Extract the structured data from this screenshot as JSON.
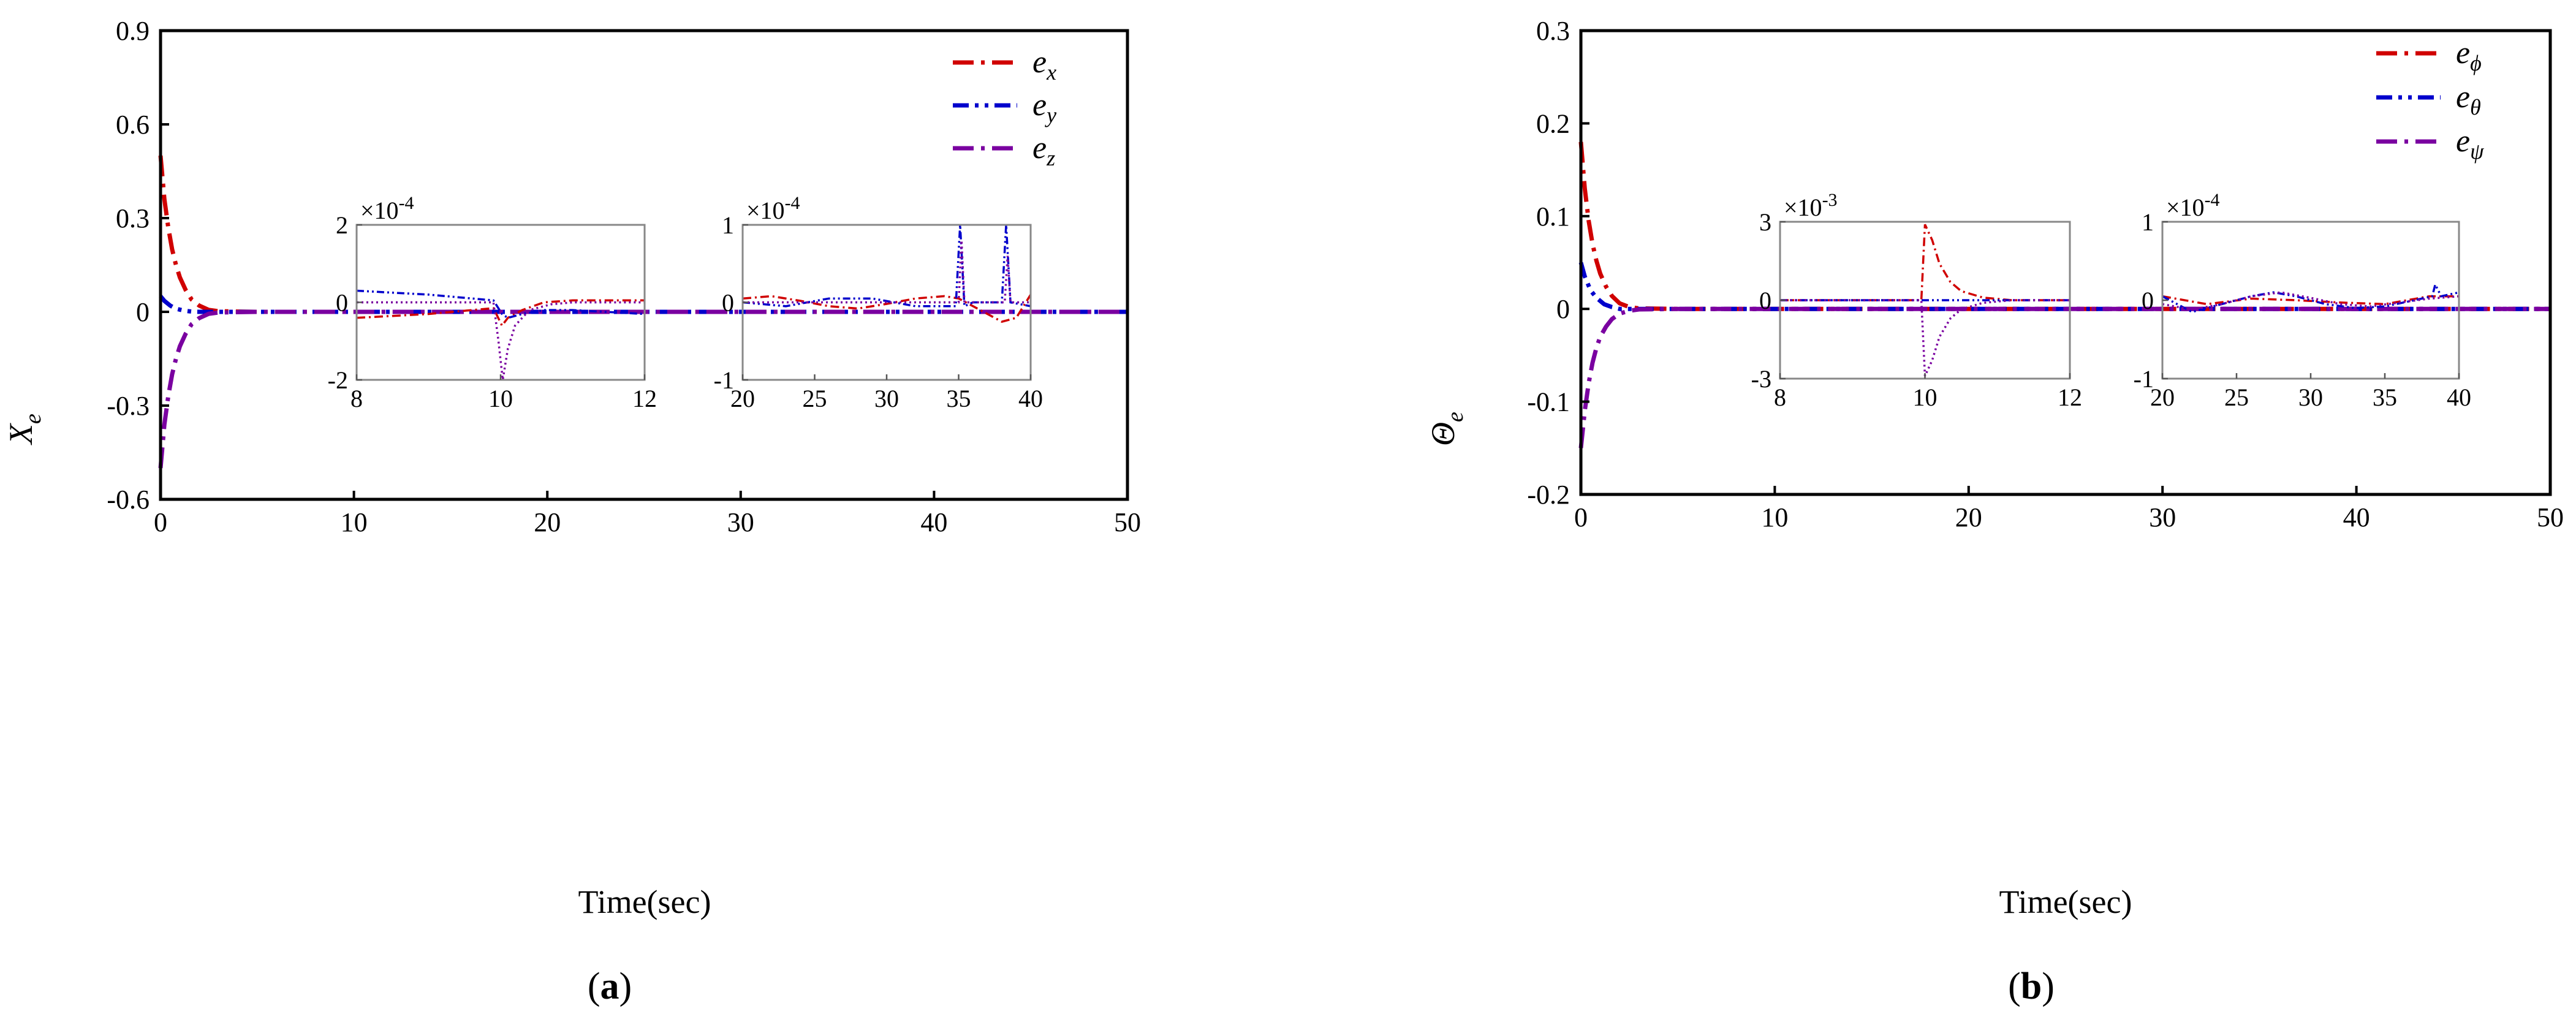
{
  "chart_data": [
    {
      "type": "line",
      "subplot_label": "a",
      "xlabel": "Time(sec)",
      "ylabel_main": "X",
      "ylabel_sub": "e",
      "xlim": [
        0,
        50
      ],
      "ylim": [
        -0.6,
        0.9
      ],
      "xticks": [
        "0",
        "10",
        "20",
        "30",
        "40",
        "50"
      ],
      "yticks": [
        "-0.6",
        "-0.3",
        "0",
        "0.3",
        "0.6",
        "0.9"
      ],
      "legend_position": "top-right",
      "series": [
        {
          "name": "e_x",
          "legend_main": "e",
          "legend_sub": "x",
          "color": "#d00000",
          "style": "dash-dot",
          "x": [
            0,
            0.2,
            0.4,
            0.6,
            0.8,
            1.0,
            1.3,
            1.6,
            2.0,
            2.5,
            3,
            5,
            10,
            20,
            30,
            40,
            50
          ],
          "y": [
            0.5,
            0.36,
            0.27,
            0.2,
            0.15,
            0.11,
            0.07,
            0.04,
            0.02,
            0.006,
            0.002,
            0,
            0,
            0,
            0,
            0,
            0
          ]
        },
        {
          "name": "e_y",
          "legend_main": "e",
          "legend_sub": "y",
          "color": "#0000cc",
          "style": "dash-dot-dot",
          "x": [
            0,
            0.2,
            0.5,
            0.8,
            1.2,
            1.6,
            2.0,
            3,
            5,
            10,
            20,
            30,
            40,
            50
          ],
          "y": [
            0.05,
            0.035,
            0.02,
            0.01,
            0.004,
            0.001,
            0,
            0,
            0,
            0,
            0,
            0,
            0,
            0
          ]
        },
        {
          "name": "e_z",
          "legend_main": "e",
          "legend_sub": "z",
          "color": "#7a00a0",
          "style": "dash-dot",
          "x": [
            0,
            0.2,
            0.4,
            0.6,
            0.8,
            1.0,
            1.3,
            1.6,
            2.0,
            2.5,
            3,
            5,
            10,
            20,
            30,
            40,
            50
          ],
          "y": [
            -0.5,
            -0.36,
            -0.27,
            -0.2,
            -0.15,
            -0.11,
            -0.07,
            -0.04,
            -0.02,
            -0.006,
            -0.002,
            0,
            0,
            0,
            0,
            0,
            0
          ]
        }
      ],
      "insets": [
        {
          "xlim": [
            8,
            12
          ],
          "ylim": [
            -2,
            2
          ],
          "multiplier": "×10",
          "exponent": "-4",
          "xticks": [
            "8",
            "10",
            "12"
          ],
          "yticks": [
            "-2",
            "0",
            "2"
          ],
          "series": [
            {
              "name": "e_x",
              "color": "#d00000",
              "style": "dash-dot",
              "x": [
                8,
                9,
                9.9,
                10.02,
                10.1,
                10.3,
                10.6,
                11,
                12
              ],
              "y": [
                -0.4,
                -0.3,
                -0.15,
                -0.6,
                -0.4,
                -0.2,
                0,
                0.05,
                0.05
              ]
            },
            {
              "name": "e_y",
              "color": "#0000cc",
              "style": "dash-dot-dot",
              "x": [
                8,
                9,
                9.9,
                10.02,
                10.1,
                10.3,
                10.6,
                11,
                12
              ],
              "y": [
                0.3,
                0.2,
                0.05,
                -0.3,
                -0.4,
                -0.3,
                -0.2,
                -0.2,
                -0.3
              ]
            },
            {
              "name": "e_z",
              "color": "#7a00a0",
              "style": "dotted",
              "x": [
                8,
                9.9,
                9.97,
                10.03,
                10.1,
                10.2,
                10.4,
                10.7,
                11,
                12
              ],
              "y": [
                0,
                0,
                -1.0,
                -2.0,
                -1.2,
                -0.6,
                -0.2,
                -0.05,
                0,
                0
              ]
            }
          ]
        },
        {
          "xlim": [
            20,
            40
          ],
          "ylim": [
            -1,
            1
          ],
          "multiplier": "×10",
          "exponent": "-4",
          "xticks": [
            "20",
            "25",
            "30",
            "35",
            "40"
          ],
          "yticks": [
            "-1",
            "0",
            "1"
          ],
          "series": [
            {
              "name": "e_x",
              "color": "#d00000",
              "style": "dash-dot",
              "x": [
                20,
                22,
                24,
                26,
                28,
                30,
                32,
                34,
                35,
                36,
                37,
                38,
                39,
                40
              ],
              "y": [
                0.05,
                0.08,
                0.02,
                -0.05,
                -0.08,
                -0.02,
                0.05,
                0.08,
                0.05,
                -0.05,
                -0.15,
                -0.25,
                -0.2,
                0.1
              ]
            },
            {
              "name": "e_y",
              "color": "#0000cc",
              "style": "dash-dot-dot",
              "x": [
                20,
                23,
                26,
                29,
                32,
                34.8,
                35.1,
                35.4,
                36,
                38.0,
                38.3,
                38.6,
                40
              ],
              "y": [
                0,
                -0.05,
                0.05,
                0.05,
                -0.05,
                -0.05,
                1.0,
                -0.05,
                0,
                0,
                1.0,
                0,
                -0.05
              ]
            },
            {
              "name": "e_z",
              "color": "#7a00a0",
              "style": "dotted",
              "x": [
                20,
                24,
                28,
                32,
                35,
                35.2,
                35.4,
                38.2,
                38.4,
                38.6,
                40
              ],
              "y": [
                0,
                0,
                0,
                0,
                0,
                0.8,
                0,
                0,
                0.6,
                0,
                0
              ]
            }
          ]
        }
      ]
    },
    {
      "type": "line",
      "subplot_label": "b",
      "xlabel": "Time(sec)",
      "ylabel_main": "Θ",
      "ylabel_sub": "e",
      "xlim": [
        0,
        50
      ],
      "ylim": [
        -0.2,
        0.3
      ],
      "xticks": [
        "0",
        "10",
        "20",
        "30",
        "40",
        "50"
      ],
      "yticks": [
        "-0.2",
        "-0.1",
        "0",
        "0.1",
        "0.2",
        "0.3"
      ],
      "legend_position": "top-right",
      "series": [
        {
          "name": "e_phi",
          "legend_main": "e",
          "legend_sub": "ϕ",
          "color": "#d00000",
          "style": "dash-dot",
          "x": [
            0,
            0.2,
            0.4,
            0.6,
            0.8,
            1.0,
            1.3,
            1.6,
            2.0,
            2.5,
            3,
            5,
            10,
            20,
            30,
            40,
            50
          ],
          "y": [
            0.18,
            0.13,
            0.095,
            0.07,
            0.052,
            0.038,
            0.024,
            0.014,
            0.006,
            0.002,
            0.0005,
            0,
            0,
            0,
            0,
            0,
            0
          ]
        },
        {
          "name": "e_theta",
          "legend_main": "e",
          "legend_sub": "θ",
          "color": "#0000cc",
          "style": "dash-dot-dot",
          "x": [
            0,
            0.2,
            0.5,
            0.8,
            1.2,
            1.6,
            2.0,
            3,
            5,
            10,
            20,
            30,
            40,
            50
          ],
          "y": [
            0.05,
            0.035,
            0.02,
            0.012,
            0.005,
            0.002,
            0,
            0,
            0,
            0,
            0,
            0,
            0,
            0
          ]
        },
        {
          "name": "e_psi",
          "legend_main": "e",
          "legend_sub": "ψ",
          "color": "#7a00a0",
          "style": "dash-dot",
          "x": [
            0,
            0.2,
            0.4,
            0.6,
            0.8,
            1.0,
            1.3,
            1.6,
            2.0,
            2.5,
            3,
            5,
            10,
            20,
            30,
            40,
            50
          ],
          "y": [
            -0.15,
            -0.11,
            -0.08,
            -0.058,
            -0.042,
            -0.03,
            -0.019,
            -0.011,
            -0.005,
            -0.002,
            -0.0005,
            0,
            0,
            0,
            0,
            0,
            0
          ]
        }
      ],
      "insets": [
        {
          "xlim": [
            8,
            12
          ],
          "ylim": [
            -3,
            3
          ],
          "multiplier": "×10",
          "exponent": "-3",
          "xticks": [
            "8",
            "10",
            "12"
          ],
          "yticks": [
            "-3",
            "0",
            "3"
          ],
          "series": [
            {
              "name": "e_phi",
              "color": "#d00000",
              "style": "dash-dot",
              "x": [
                8,
                9.95,
                10.0,
                10.1,
                10.2,
                10.35,
                10.5,
                10.8,
                11.2,
                12
              ],
              "y": [
                0,
                0,
                2.9,
                2.3,
                1.4,
                0.7,
                0.35,
                0.1,
                0,
                0
              ]
            },
            {
              "name": "e_theta",
              "color": "#0000cc",
              "style": "dash-dot-dot",
              "x": [
                8,
                10,
                12
              ],
              "y": [
                0,
                0,
                0
              ]
            },
            {
              "name": "e_psi",
              "color": "#7a00a0",
              "style": "dotted",
              "x": [
                8,
                9.95,
                10.0,
                10.1,
                10.2,
                10.35,
                10.5,
                10.8,
                11.2,
                12
              ],
              "y": [
                0,
                0,
                -2.9,
                -2.3,
                -1.4,
                -0.7,
                -0.35,
                -0.1,
                0,
                0
              ]
            }
          ]
        },
        {
          "xlim": [
            20,
            40
          ],
          "ylim": [
            -1,
            1
          ],
          "multiplier": "×10",
          "exponent": "-4",
          "xticks": [
            "20",
            "25",
            "30",
            "35",
            "40"
          ],
          "yticks": [
            "-1",
            "0",
            "1"
          ],
          "series": [
            {
              "name": "e_phi",
              "color": "#d00000",
              "style": "dash-dot",
              "x": [
                20,
                23,
                26,
                29,
                32,
                35,
                38,
                40
              ],
              "y": [
                0.05,
                -0.05,
                0.02,
                0,
                -0.03,
                -0.05,
                0.05,
                0.05
              ]
            },
            {
              "name": "e_theta",
              "color": "#0000cc",
              "style": "dash-dot-dot",
              "x": [
                20,
                22,
                24,
                26,
                27.5,
                29,
                31,
                33,
                35,
                37,
                38.2,
                38.4,
                38.8,
                40
              ],
              "y": [
                0.05,
                -0.15,
                -0.05,
                0.05,
                0.1,
                0.05,
                -0.05,
                -0.1,
                -0.08,
                0,
                0.05,
                0.2,
                0.05,
                0.1
              ]
            },
            {
              "name": "e_psi",
              "color": "#7a00a0",
              "style": "dotted",
              "x": [
                20,
                22,
                24,
                26,
                28,
                30,
                32,
                34,
                36,
                38,
                40
              ],
              "y": [
                -0.05,
                -0.12,
                -0.05,
                0.05,
                0.1,
                0.03,
                -0.05,
                -0.08,
                -0.03,
                0.02,
                0.05
              ]
            }
          ]
        }
      ]
    }
  ]
}
